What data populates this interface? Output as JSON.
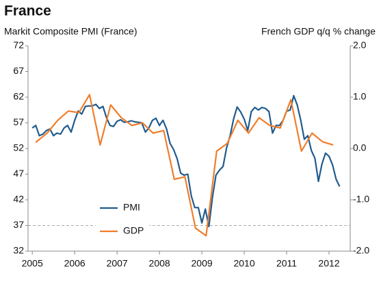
{
  "chart_data": {
    "type": "line",
    "title": "France",
    "ylabel": "Markit Composite PMI (France)",
    "y2label": "French GDP q/q % change",
    "xlim": [
      2004.9,
      2012.5
    ],
    "xticks": [
      2005,
      2006,
      2007,
      2008,
      2009,
      2010,
      2011,
      2012
    ],
    "ylim": [
      32,
      72
    ],
    "yticks": [
      32,
      37,
      42,
      47,
      52,
      57,
      62,
      67,
      72
    ],
    "y2lim": [
      -2,
      2
    ],
    "y2ticks": [
      {
        "value": -2,
        "label": "-2.0"
      },
      {
        "value": -1,
        "label": "-1.0"
      },
      {
        "value": 0,
        "label": "0.0"
      },
      {
        "value": 1,
        "label": "1.0"
      },
      {
        "value": 2,
        "label": "2.0"
      }
    ],
    "hline": 37,
    "legend": "lower left",
    "series": [
      {
        "name": "PMI",
        "color": "#1f5b8e",
        "x": [
          2005,
          2005.083,
          2005.167,
          2005.25,
          2005.333,
          2005.417,
          2005.5,
          2005.583,
          2005.667,
          2005.75,
          2005.833,
          2005.917,
          2006,
          2006.083,
          2006.167,
          2006.25,
          2006.333,
          2006.417,
          2006.5,
          2006.583,
          2006.667,
          2006.75,
          2006.833,
          2006.917,
          2007,
          2007.083,
          2007.167,
          2007.25,
          2007.333,
          2007.417,
          2007.5,
          2007.583,
          2007.667,
          2007.75,
          2007.833,
          2007.917,
          2008,
          2008.083,
          2008.167,
          2008.25,
          2008.333,
          2008.417,
          2008.5,
          2008.583,
          2008.667,
          2008.75,
          2008.833,
          2008.917,
          2009,
          2009.083,
          2009.167,
          2009.25,
          2009.333,
          2009.417,
          2009.5,
          2009.583,
          2009.667,
          2009.75,
          2009.833,
          2009.917,
          2010,
          2010.083,
          2010.167,
          2010.25,
          2010.333,
          2010.417,
          2010.5,
          2010.583,
          2010.667,
          2010.75,
          2010.833,
          2010.917,
          2011,
          2011.083,
          2011.167,
          2011.25,
          2011.333,
          2011.417,
          2011.5,
          2011.583,
          2011.667,
          2011.75,
          2011.833,
          2011.917,
          2012,
          2012.083,
          2012.167,
          2012.25
        ],
        "values": [
          56,
          56.5,
          54.5,
          54.8,
          55.5,
          55.8,
          54.5,
          55,
          54.8,
          56,
          56.5,
          55.2,
          57.5,
          59.3,
          58.7,
          60.2,
          60.3,
          60.3,
          60.6,
          59.8,
          60.2,
          58,
          56.5,
          56.3,
          57.3,
          57.6,
          57.1,
          57.2,
          57.4,
          57.2,
          57.1,
          57,
          55.2,
          56,
          57.5,
          57.9,
          56.5,
          57.5,
          55.8,
          53,
          51.8,
          50,
          47.2,
          46.8,
          47,
          42.8,
          40.5,
          40.5,
          37.5,
          40.2,
          36.8,
          42.5,
          46.8,
          47.8,
          48.5,
          52.1,
          54.5,
          57.8,
          60.1,
          59.1,
          57.7,
          55.5,
          59.2,
          60,
          59.5,
          60,
          59.8,
          59.2,
          55,
          56.5,
          56.5,
          57.5,
          59.3,
          59.5,
          62.3,
          60.5,
          57.5,
          53.8,
          54.5,
          51.6,
          50.1,
          45.6,
          49,
          51.1,
          50.5,
          48.8,
          46,
          44.6
        ]
      },
      {
        "name": "GDP",
        "color": "#f07d2a",
        "axis": "y2",
        "x": [
          2005.08,
          2005.35,
          2005.6,
          2005.85,
          2006.1,
          2006.35,
          2006.6,
          2006.85,
          2007.1,
          2007.35,
          2007.6,
          2007.85,
          2008.1,
          2008.35,
          2008.6,
          2008.85,
          2009.1,
          2009.35,
          2009.6,
          2009.85,
          2010.1,
          2010.35,
          2010.6,
          2010.85,
          2011.1,
          2011.35,
          2011.6,
          2011.85,
          2012.1
        ],
        "values": [
          0.12,
          0.3,
          0.55,
          0.73,
          0.7,
          1.05,
          0.07,
          0.85,
          0.6,
          0.45,
          0.5,
          0.3,
          0.35,
          -0.6,
          -0.55,
          -1.55,
          -1.7,
          -0.05,
          0.1,
          0.55,
          0.3,
          0.6,
          0.45,
          0.4,
          0.95,
          -0.05,
          0.3,
          0.13,
          0.07
        ]
      }
    ]
  }
}
